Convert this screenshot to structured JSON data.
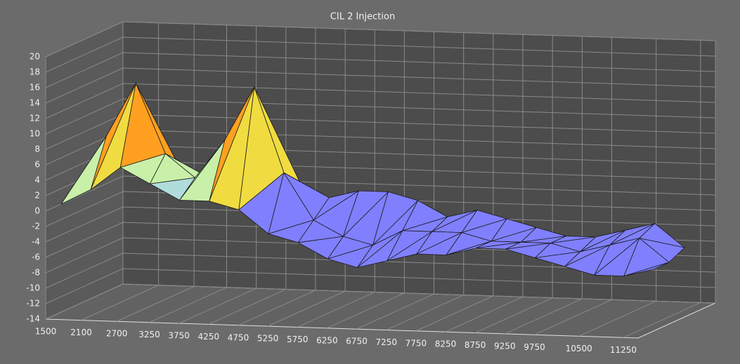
{
  "chart_data": {
    "type": "surface",
    "title": "CIL 2 Injection",
    "x": [
      1500,
      2000,
      2500,
      3000,
      3500,
      4000,
      4500,
      5000,
      5500,
      6000,
      6500,
      7000,
      7500,
      8000,
      8500,
      9000,
      9500,
      10000,
      10500,
      11000,
      11500
    ],
    "series": [
      {
        "values": [
          0,
          2,
          5,
          3,
          1,
          1,
          0,
          -3,
          -4,
          -6,
          -7,
          -6,
          -5,
          -5,
          -4,
          -4,
          -5,
          -6,
          -7,
          -7,
          -6
        ]
      },
      {
        "values": [
          2,
          8,
          15,
          6,
          3,
          8,
          15,
          4,
          -2,
          -4,
          -5,
          -3,
          -3,
          -3,
          -4,
          -4,
          -4,
          -5,
          -4,
          -3,
          -6
        ]
      },
      {
        "values": [
          3,
          4,
          6,
          3,
          2,
          3,
          5,
          2,
          0,
          1,
          1,
          0,
          -2,
          -1,
          -2,
          -3,
          -4,
          -4,
          -3,
          -2,
          -5
        ]
      }
    ],
    "xlim": [
      1500,
      11500
    ],
    "xticks": [
      1500,
      2100,
      2700,
      3250,
      3750,
      4250,
      4750,
      5250,
      5750,
      6250,
      6750,
      7250,
      7750,
      8250,
      8750,
      9250,
      9750,
      10500,
      11250
    ],
    "ylim": [
      -14,
      20
    ],
    "yticks": [
      -14,
      -12,
      -10,
      -8,
      -6,
      -4,
      -2,
      0,
      2,
      4,
      6,
      8,
      10,
      12,
      14,
      16,
      18,
      20
    ],
    "grid": true,
    "color_levels": [
      2,
      3,
      5,
      8,
      11,
      13,
      15
    ],
    "colors": [
      "#8080ff",
      "#b0dcdc",
      "#c8f0a8",
      "#f0dc40",
      "#ffa020",
      "#ff7010",
      "#f02828",
      "#d0107a"
    ]
  }
}
